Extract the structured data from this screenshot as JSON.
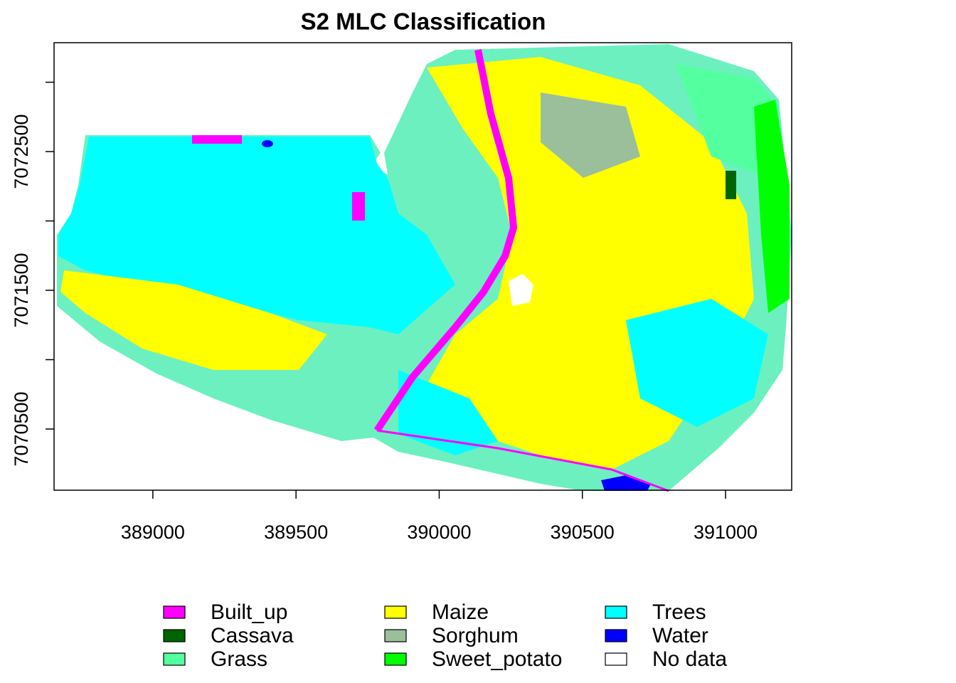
{
  "chart_data": {
    "type": "raster",
    "title": "S2 MLC Classification",
    "xlim": [
      388655,
      391231
    ],
    "ylim": [
      7070059,
      7073285
    ],
    "xticks": [
      389000,
      389500,
      390000,
      390500,
      391000
    ],
    "yticks": [
      7070500,
      {
        "value": 7071000,
        "label": null
      },
      7071500,
      {
        "value": 7072000,
        "label": null
      },
      7072500,
      {
        "value": 7073000,
        "label": null
      }
    ],
    "legend_position": "bottom",
    "classes": [
      {
        "name": "Built_up",
        "color": "#ff00ff"
      },
      {
        "name": "Cassava",
        "color": "#006400"
      },
      {
        "name": "Grass",
        "color": "#54ff9f"
      },
      {
        "name": "Maize",
        "color": "#ffff00"
      },
      {
        "name": "Sorghum",
        "color": "#9bbf9b"
      },
      {
        "name": "Sweet_potato",
        "color": "#00ff00"
      },
      {
        "name": "Trees",
        "color": "#00ffff"
      },
      {
        "name": "Water",
        "color": "#0000ff"
      },
      {
        "name": "No data",
        "color": "#ffffff"
      }
    ]
  }
}
